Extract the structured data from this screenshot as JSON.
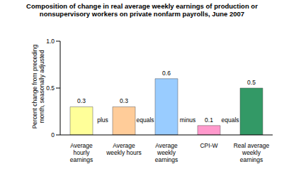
{
  "chart_data": {
    "type": "bar",
    "title": "Composition of change in real average weekly earnings of production or nonsupervisory workers on private nonfarm payrolls, June 2007",
    "y_label": "Percent change from preceding month, seasonally adjusted",
    "categories": [
      "Average hourly earnings",
      "Average weekly hours",
      "Average weekly earnings",
      "CPI-W",
      "Real average weekly earnings"
    ],
    "values": [
      0.3,
      0.3,
      0.6,
      0.1,
      0.5
    ],
    "colors": [
      "#ffff99",
      "#ffcc99",
      "#99ccff",
      "#ff99cc",
      "#339966"
    ],
    "annotations": [
      "plus",
      "equals",
      "minus",
      "equals"
    ],
    "ylim": [
      0,
      1
    ],
    "yticks": [
      0,
      0.5,
      {
        "value": 1,
        "label": "1.0"
      }
    ],
    "grid": false,
    "data_labels": true
  }
}
